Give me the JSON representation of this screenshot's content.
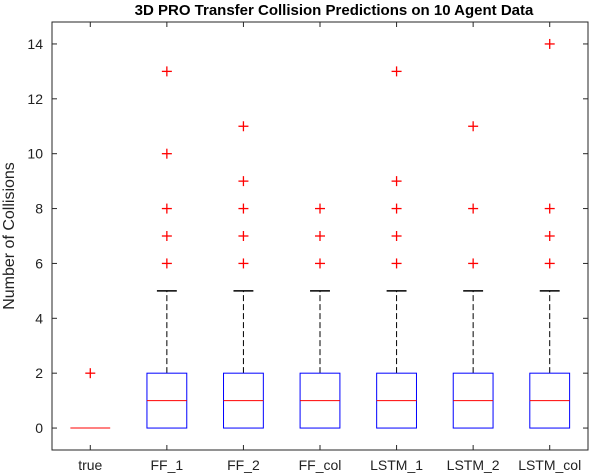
{
  "chart_data": {
    "type": "boxplot",
    "title": "3D PRO Transfer Collision Predictions on 10 Agent Data",
    "xlabel": "",
    "ylabel": "Number of Collisions",
    "ylim": [
      -0.8,
      14.8
    ],
    "yticks": [
      0,
      2,
      4,
      6,
      8,
      10,
      12,
      14
    ],
    "categories": [
      "true",
      "FF_1",
      "FF_2",
      "FF_col",
      "LSTM_1",
      "LSTM_2",
      "LSTM_col"
    ],
    "series": [
      {
        "q1": 0,
        "median": 0,
        "q3": 0,
        "whisker_low": 0,
        "whisker_high": 0,
        "outliers": [
          2
        ]
      },
      {
        "q1": 0,
        "median": 1,
        "q3": 2,
        "whisker_low": 0,
        "whisker_high": 5,
        "outliers": [
          6,
          7,
          8,
          10,
          13
        ]
      },
      {
        "q1": 0,
        "median": 1,
        "q3": 2,
        "whisker_low": 0,
        "whisker_high": 5,
        "outliers": [
          6,
          7,
          8,
          9,
          11
        ]
      },
      {
        "q1": 0,
        "median": 1,
        "q3": 2,
        "whisker_low": 0,
        "whisker_high": 5,
        "outliers": [
          6,
          7,
          8
        ]
      },
      {
        "q1": 0,
        "median": 1,
        "q3": 2,
        "whisker_low": 0,
        "whisker_high": 5,
        "outliers": [
          6,
          7,
          8,
          9,
          13
        ]
      },
      {
        "q1": 0,
        "median": 1,
        "q3": 2,
        "whisker_low": 0,
        "whisker_high": 5,
        "outliers": [
          6,
          8,
          11
        ]
      },
      {
        "q1": 0,
        "median": 1,
        "q3": 2,
        "whisker_low": 0,
        "whisker_high": 5,
        "outliers": [
          6,
          7,
          8,
          14
        ]
      }
    ],
    "colors": {
      "box": "#0000ff",
      "median": "#ff0000",
      "whisker": "#000000",
      "outlier": "#ff0000"
    },
    "grid": false,
    "legend": "none"
  }
}
